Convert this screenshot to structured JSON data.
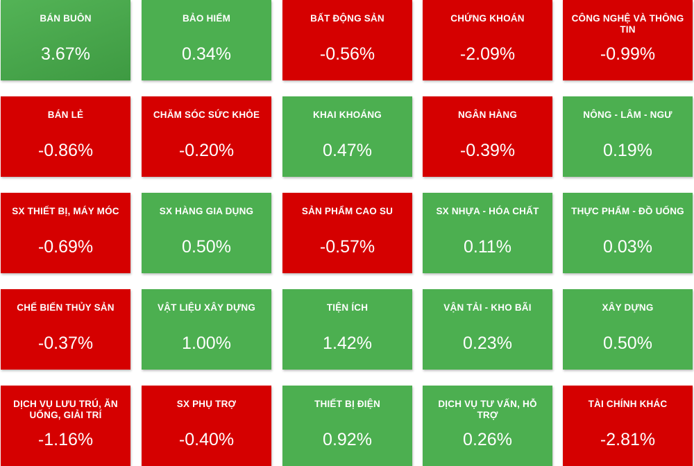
{
  "colors": {
    "up": "#4caf50",
    "down": "#d50000"
  },
  "tiles": [
    {
      "name": "BÁN BUÔN",
      "value": "3.67%",
      "trend": "up"
    },
    {
      "name": "BẢO HIỂM",
      "value": "0.34%",
      "trend": "up"
    },
    {
      "name": "BẤT ĐỘNG SẢN",
      "value": "-0.56%",
      "trend": "down"
    },
    {
      "name": "CHỨNG KHOÁN",
      "value": "-2.09%",
      "trend": "down"
    },
    {
      "name": "CÔNG NGHỆ VÀ THÔNG TIN",
      "value": "-0.99%",
      "trend": "down"
    },
    {
      "name": "BÁN LẺ",
      "value": "-0.86%",
      "trend": "down"
    },
    {
      "name": "CHĂM SÓC SỨC KHỎE",
      "value": "-0.20%",
      "trend": "down"
    },
    {
      "name": "KHAI KHOÁNG",
      "value": "0.47%",
      "trend": "up"
    },
    {
      "name": "NGÂN HÀNG",
      "value": "-0.39%",
      "trend": "down"
    },
    {
      "name": "NÔNG - LÂM - NGƯ",
      "value": "0.19%",
      "trend": "up"
    },
    {
      "name": "SX THIẾT BỊ, MÁY MÓC",
      "value": "-0.69%",
      "trend": "down"
    },
    {
      "name": "SX HÀNG GIA DỤNG",
      "value": "0.50%",
      "trend": "up"
    },
    {
      "name": "SẢN PHẨM CAO SU",
      "value": "-0.57%",
      "trend": "down"
    },
    {
      "name": "SX NHỰA - HÓA CHẤT",
      "value": "0.11%",
      "trend": "up"
    },
    {
      "name": "THỰC PHẨM - ĐỒ UỐNG",
      "value": "0.03%",
      "trend": "up"
    },
    {
      "name": "CHẾ BIẾN THỦY SẢN",
      "value": "-0.37%",
      "trend": "down"
    },
    {
      "name": "VẬT LIỆU XÂY DỰNG",
      "value": "1.00%",
      "trend": "up"
    },
    {
      "name": "TIỆN ÍCH",
      "value": "1.42%",
      "trend": "up"
    },
    {
      "name": "VẬN TẢI - KHO BÃI",
      "value": "0.23%",
      "trend": "up"
    },
    {
      "name": "XÂY DỰNG",
      "value": "0.50%",
      "trend": "up"
    },
    {
      "name": "DỊCH VỤ LƯU TRÚ, ĂN UỐNG, GIẢI TRÍ",
      "value": "-1.16%",
      "trend": "down"
    },
    {
      "name": "SX PHỤ TRỢ",
      "value": "-0.40%",
      "trend": "down"
    },
    {
      "name": "THIẾT BỊ ĐIỆN",
      "value": "0.92%",
      "trend": "up"
    },
    {
      "name": "DỊCH VỤ TƯ VẤN, HỖ TRỢ",
      "value": "0.26%",
      "trend": "up"
    },
    {
      "name": "TÀI CHÍNH KHÁC",
      "value": "-2.81%",
      "trend": "down"
    }
  ]
}
